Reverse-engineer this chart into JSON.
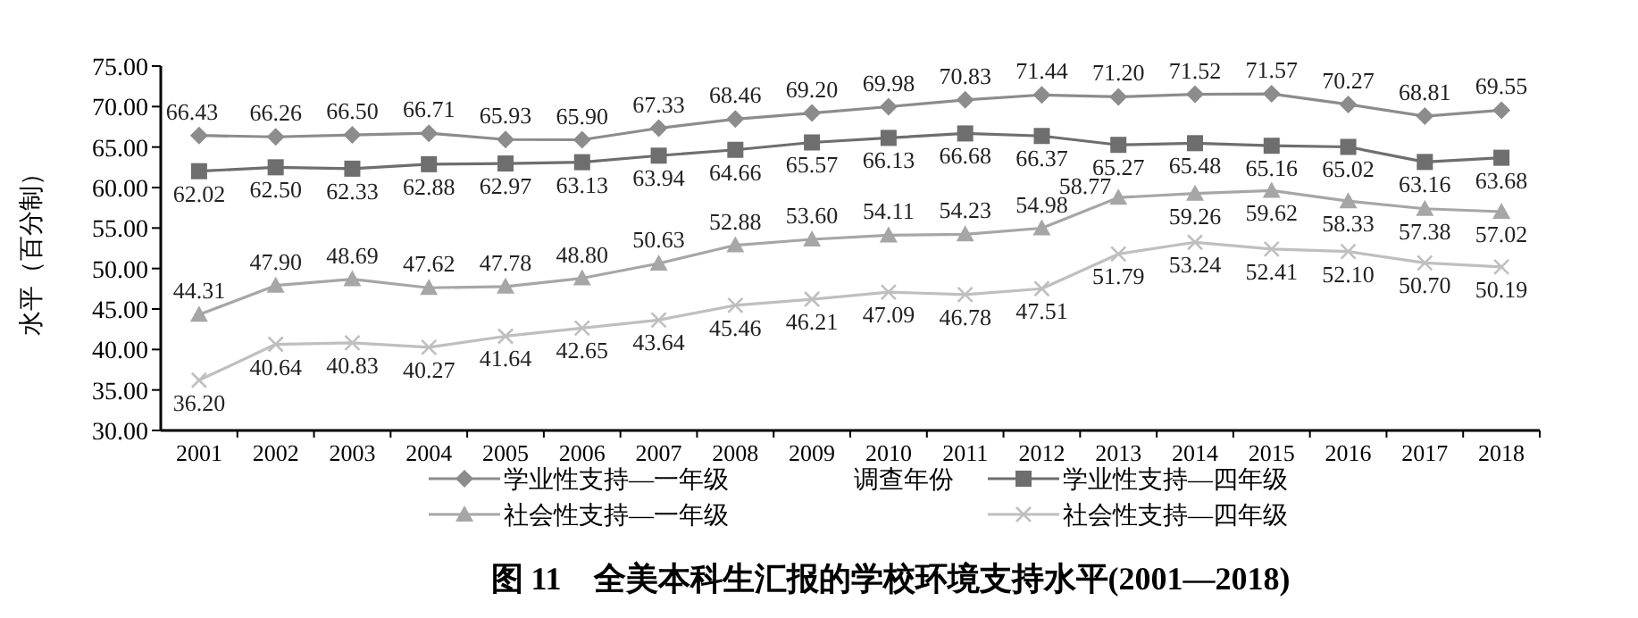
{
  "chart_data": {
    "type": "line",
    "title": "图 11　全美本科生汇报的学校环境支持水平(2001—2018)",
    "xlabel": "调查年份",
    "ylabel": "水平（百分制）",
    "categories": [
      "2001",
      "2002",
      "2003",
      "2004",
      "2005",
      "2006",
      "2007",
      "2008",
      "2009",
      "2010",
      "2011",
      "2012",
      "2013",
      "2014",
      "2015",
      "2016",
      "2017",
      "2018"
    ],
    "series": [
      {
        "name": "学业性支持—一年级",
        "color": "#8c8c8c",
        "marker": "diamond",
        "values": [
          66.43,
          66.26,
          66.5,
          66.71,
          65.93,
          65.9,
          67.33,
          68.46,
          69.2,
          69.98,
          70.83,
          71.44,
          71.2,
          71.52,
          71.57,
          70.27,
          68.81,
          69.55
        ],
        "value_labels": [
          "66.43",
          "66.26",
          "66.50",
          "66.71",
          "65.93",
          "65.90",
          "67.33",
          "68.46",
          "69.20",
          "69.98",
          "70.83",
          "71.44",
          "71.20",
          "71.52",
          "71.57",
          "70.27",
          "68.81",
          "69.55"
        ]
      },
      {
        "name": "学业性支持—四年级",
        "color": "#6e6e6e",
        "marker": "square",
        "values": [
          62.02,
          62.5,
          62.33,
          62.88,
          62.97,
          63.13,
          63.94,
          64.66,
          65.57,
          66.13,
          66.68,
          66.37,
          65.27,
          65.48,
          65.16,
          65.02,
          63.16,
          63.68
        ],
        "value_labels": [
          "62.02",
          "62.50",
          "62.33",
          "62.88",
          "62.97",
          "63.13",
          "63.94",
          "64.66",
          "65.57",
          "66.13",
          "66.68",
          "66.37",
          "65.27",
          "65.48",
          "65.16",
          "65.02",
          "63.16",
          "63.68"
        ]
      },
      {
        "name": "社会性支持—一年级",
        "color": "#a6a6a6",
        "marker": "triangle",
        "values": [
          44.31,
          47.9,
          48.69,
          47.62,
          47.78,
          48.8,
          50.63,
          52.88,
          53.6,
          54.11,
          54.23,
          54.98,
          58.77,
          59.26,
          59.62,
          58.33,
          57.38,
          57.02
        ],
        "value_labels": [
          "44.31",
          "47.90",
          "48.69",
          "47.62",
          "47.78",
          "48.80",
          "50.63",
          "52.88",
          "53.60",
          "54.11",
          "54.23",
          "54.98",
          "58.77",
          "59.26",
          "59.62",
          "58.33",
          "57.38",
          "57.02"
        ]
      },
      {
        "name": "社会性支持—四年级",
        "color": "#bfbfbf",
        "marker": "cross",
        "values": [
          36.2,
          40.64,
          40.83,
          40.27,
          41.64,
          42.65,
          43.64,
          45.46,
          46.21,
          47.09,
          46.78,
          47.51,
          51.79,
          53.24,
          52.41,
          52.1,
          50.7,
          50.19
        ],
        "value_labels": [
          "36.20",
          "40.64",
          "40.83",
          "40.27",
          "41.64",
          "42.65",
          "43.64",
          "45.46",
          "46.21",
          "47.09",
          "46.78",
          "47.51",
          "51.79",
          "53.24",
          "52.41",
          "52.10",
          "50.70",
          "50.19"
        ]
      }
    ],
    "ylim": [
      30,
      75
    ],
    "yticks": [
      {
        "value": 30,
        "label": "30.00"
      },
      {
        "value": 35,
        "label": "35.00"
      },
      {
        "value": 40,
        "label": "40.00"
      },
      {
        "value": 45,
        "label": "45.00"
      },
      {
        "value": 50,
        "label": "50.00"
      },
      {
        "value": 55,
        "label": "55.00"
      },
      {
        "value": 60,
        "label": "60.00"
      },
      {
        "value": 65,
        "label": "65.00"
      },
      {
        "value": 70,
        "label": "70.00"
      },
      {
        "value": 75,
        "label": "75.00"
      }
    ],
    "grid": false,
    "legend": "bottom",
    "line_style": "solid"
  }
}
